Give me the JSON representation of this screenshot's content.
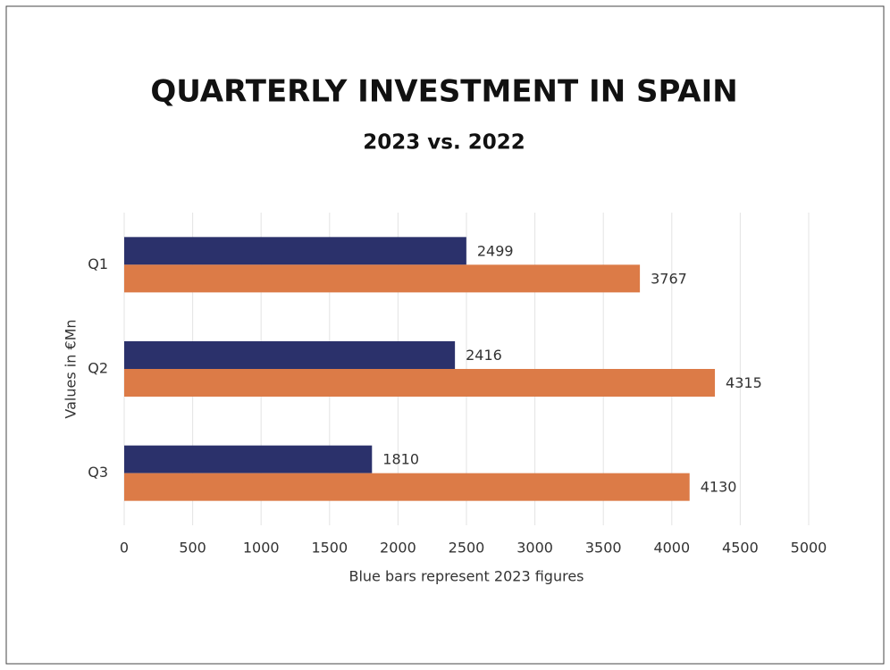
{
  "chart_data": {
    "type": "bar",
    "orientation": "horizontal",
    "title": "QUARTERLY INVESTMENT IN SPAIN",
    "subtitle": "2023 vs. 2022",
    "x_label": "Blue bars represent 2023 figures",
    "y_label": "Values in €Mn",
    "categories": [
      "Q1",
      "Q2",
      "Q3"
    ],
    "series": [
      {
        "color": "#2b316b",
        "values": [
          2499,
          2416,
          1810
        ]
      },
      {
        "color": "#dc7b47",
        "values": [
          3767,
          4315,
          4130
        ]
      }
    ],
    "xlim": [
      0,
      5000
    ],
    "xticks": [
      0,
      500,
      1000,
      1500,
      2000,
      2500,
      3000,
      3500,
      4000,
      4500,
      5000
    ],
    "grid": true
  }
}
